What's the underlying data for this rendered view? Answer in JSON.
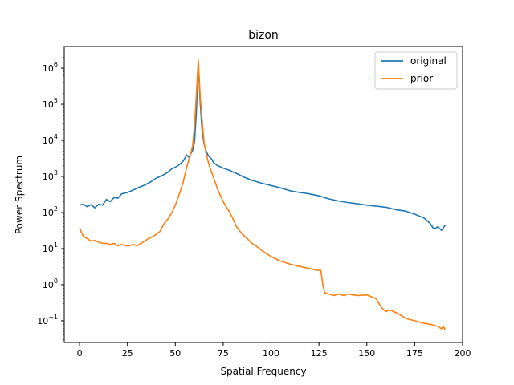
{
  "chart_data": {
    "type": "line",
    "title": "bizon",
    "xlabel": "Spatial Frequency",
    "ylabel": "Power Spectrum",
    "yscale": "log",
    "xlim": [
      -8,
      200
    ],
    "ylim": [
      0.025,
      4000000
    ],
    "xticks": [
      0,
      25,
      50,
      75,
      100,
      125,
      150,
      175,
      200
    ],
    "yticks": [
      {
        "value": 0.1,
        "base": "10",
        "exp": "−1"
      },
      {
        "value": 1,
        "base": "10",
        "exp": "0"
      },
      {
        "value": 10,
        "base": "10",
        "exp": "1"
      },
      {
        "value": 100,
        "base": "10",
        "exp": "2"
      },
      {
        "value": 1000,
        "base": "10",
        "exp": "3"
      },
      {
        "value": 10000,
        "base": "10",
        "exp": "4"
      },
      {
        "value": 100000,
        "base": "10",
        "exp": "5"
      },
      {
        "value": 1000000,
        "base": "10",
        "exp": "6"
      }
    ],
    "grid": false,
    "legend": "top-right",
    "series": [
      {
        "name": "original",
        "color": "#1f77b4",
        "x": [
          0,
          2,
          4,
          6,
          8,
          10,
          12,
          14,
          16,
          18,
          20,
          22,
          25,
          28,
          31,
          34,
          37,
          40,
          43,
          46,
          48,
          50,
          52,
          54,
          55,
          56,
          57,
          58,
          59,
          60,
          61,
          62,
          63,
          64,
          65,
          66,
          67,
          68,
          69,
          70,
          72,
          75,
          78,
          82,
          86,
          90,
          95,
          100,
          105,
          110,
          115,
          120,
          125,
          130,
          135,
          140,
          145,
          150,
          155,
          160,
          165,
          170,
          175,
          180,
          183,
          185,
          187,
          189,
          191
        ],
        "values": [
          160,
          170,
          145,
          165,
          135,
          170,
          160,
          230,
          200,
          260,
          250,
          330,
          360,
          420,
          500,
          580,
          700,
          900,
          1050,
          1300,
          1600,
          1800,
          2100,
          2600,
          3200,
          3900,
          3400,
          4200,
          5200,
          9000,
          60000,
          1200000,
          110000,
          18000,
          8000,
          5200,
          4000,
          3400,
          3000,
          2400,
          2000,
          1700,
          1500,
          1200,
          950,
          780,
          650,
          560,
          480,
          400,
          360,
          330,
          290,
          240,
          210,
          190,
          175,
          160,
          150,
          140,
          120,
          110,
          90,
          70,
          50,
          35,
          40,
          32,
          45
        ]
      },
      {
        "name": "prior",
        "color": "#ff7f0e",
        "x": [
          0,
          1,
          2,
          4,
          6,
          8,
          10,
          12,
          14,
          16,
          18,
          20,
          22,
          24,
          26,
          28,
          30,
          32,
          34,
          36,
          38,
          40,
          42,
          44,
          46,
          48,
          50,
          52,
          54,
          55,
          56,
          57,
          58,
          59,
          60,
          61,
          62,
          63,
          64,
          65,
          66,
          67,
          68,
          69,
          70,
          71,
          72,
          74,
          76,
          78,
          80,
          82,
          85,
          88,
          90,
          92,
          95,
          100,
          105,
          110,
          115,
          120,
          124,
          126,
          127,
          128,
          130,
          133,
          135,
          138,
          140,
          145,
          150,
          153,
          155,
          156,
          158,
          160,
          162,
          165,
          168,
          170,
          172,
          175,
          178,
          180,
          183,
          185,
          187,
          189,
          190,
          191
        ],
        "values": [
          38,
          28,
          22,
          19,
          16,
          17,
          15,
          14,
          14,
          13,
          14,
          12,
          13,
          12,
          12,
          13,
          12,
          14,
          16,
          19,
          21,
          25,
          30,
          48,
          65,
          95,
          160,
          320,
          650,
          1100,
          1800,
          2800,
          4200,
          7000,
          25000,
          180000,
          1700000,
          160000,
          35000,
          9000,
          4500,
          2800,
          1800,
          1300,
          900,
          650,
          450,
          260,
          160,
          110,
          70,
          40,
          25,
          18,
          14,
          12,
          9,
          6,
          4.5,
          3.7,
          3.2,
          2.8,
          2.5,
          2.5,
          1.0,
          0.6,
          0.55,
          0.5,
          0.55,
          0.5,
          0.55,
          0.5,
          0.52,
          0.45,
          0.4,
          0.32,
          0.22,
          0.18,
          0.2,
          0.17,
          0.14,
          0.12,
          0.11,
          0.1,
          0.09,
          0.085,
          0.08,
          0.075,
          0.07,
          0.06,
          0.07,
          0.055
        ]
      }
    ]
  }
}
